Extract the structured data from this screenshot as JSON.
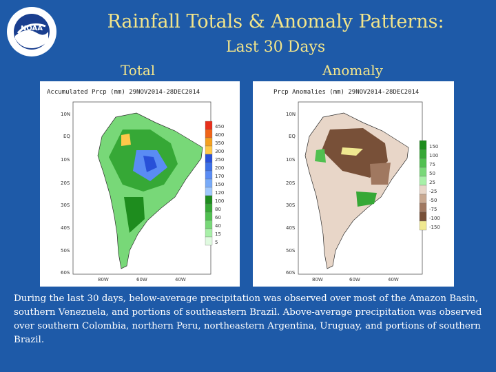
{
  "header": {
    "title": "Rainfall Totals & Anomaly Patterns:",
    "subtitle": "Last 30 Days"
  },
  "logo": {
    "icon": "noaa-logo-icon",
    "text": "NOAA"
  },
  "panels": {
    "total": {
      "label": "Total",
      "map_title": "Accumulated Prcp (mm) 29NOV2014-28DEC2014",
      "colorbar": [
        "450",
        "400",
        "350",
        "300",
        "250",
        "200",
        "170",
        "150",
        "120",
        "100",
        "80",
        "60",
        "40",
        "15",
        "5"
      ],
      "colors": [
        "#e8301c",
        "#f06418",
        "#f4a020",
        "#ffc84a",
        "#2850d8",
        "#3c70e8",
        "#5a8cf4",
        "#78aaf8",
        "#a0c8fc",
        "#1e8c1e",
        "#36a836",
        "#50c050",
        "#78d878",
        "#a8f0a8",
        "#e0fae0"
      ],
      "lat_ticks": [
        "10N",
        "EQ",
        "10S",
        "20S",
        "30S",
        "40S",
        "50S",
        "60S"
      ],
      "lon_ticks": [
        "80W",
        "60W",
        "40W"
      ]
    },
    "anomaly": {
      "label": "Anomaly",
      "map_title": "Prcp Anomalies (mm) 29NOV2014-28DEC2014",
      "colorbar": [
        "150",
        "100",
        "75",
        "50",
        "25",
        "-25",
        "-50",
        "-75",
        "-100",
        "-150"
      ],
      "colors": [
        "#1e8c1e",
        "#36a836",
        "#50c050",
        "#78d878",
        "#a8f0a8",
        "#e8d6c8",
        "#c8a890",
        "#a07860",
        "#785038",
        "#f0e890"
      ],
      "lat_ticks": [
        "10N",
        "EQ",
        "10S",
        "20S",
        "30S",
        "40S",
        "50S",
        "60S"
      ],
      "lon_ticks": [
        "80W",
        "60W",
        "40W"
      ]
    }
  },
  "caption": "During the last 30 days, below-average precipitation was observed over most of the Amazon Basin, southern Venezuela, and portions of southeastern Brazil. Above-average precipitation was observed over southern Colombia, northern Peru, northeastern Argentina, Uruguay, and portions of southern Brazil."
}
